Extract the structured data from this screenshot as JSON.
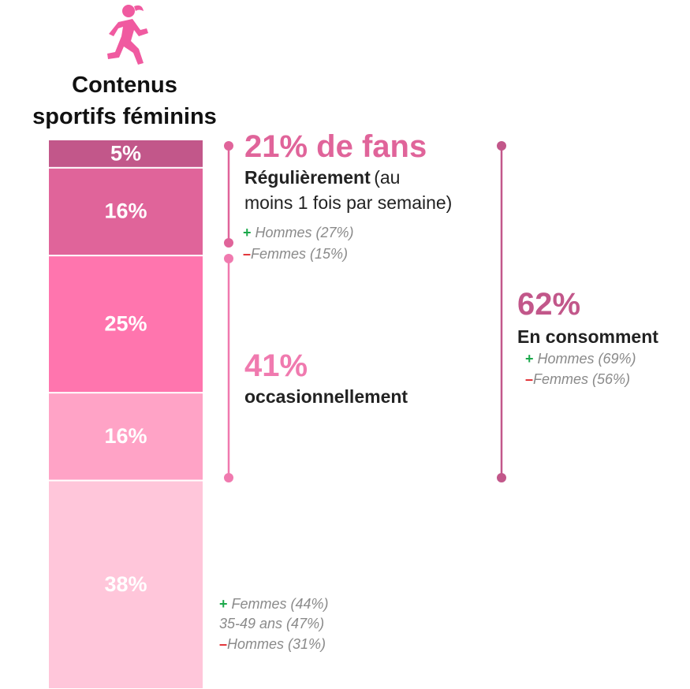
{
  "chart_data": {
    "type": "stacked-bar",
    "title": [
      "Contenus",
      "sportifs féminins"
    ],
    "values": [
      5,
      16,
      25,
      16,
      38
    ],
    "value_labels": [
      "5%",
      "16%",
      "25%",
      "16%",
      "38%"
    ],
    "colors": [
      "#c2578a",
      "#e0649a",
      "#ff75ae",
      "#ffa3c6",
      "#ffc6da"
    ],
    "annotations": {
      "fans": {
        "headline": "21% de fans",
        "bold": "Régulièrement",
        "text": [
          "(au",
          "moins 1 fois par semaine)"
        ],
        "notes": [
          {
            "sign": "+",
            "text": "Hommes (27%)"
          },
          {
            "sign": "–",
            "text": "Femmes (15%)"
          }
        ]
      },
      "occasional": {
        "headline": "41%",
        "bold": "occasionnellement"
      },
      "total": {
        "headline": "62%",
        "bold": "En consomment",
        "notes": [
          {
            "sign": "+",
            "text": "Hommes (69%)"
          },
          {
            "sign": "–",
            "text": "Femmes (56%)"
          }
        ]
      },
      "non": {
        "notes": [
          {
            "sign": "+",
            "text": "Femmes (44%)"
          },
          {
            "sign": "",
            "text": "35-49 ans (47%)"
          },
          {
            "sign": "–",
            "text": "Hommes (31%)"
          }
        ]
      }
    }
  }
}
